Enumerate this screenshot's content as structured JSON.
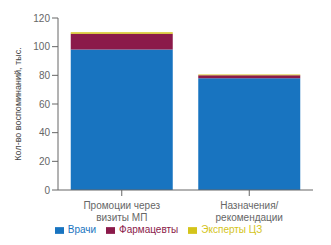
{
  "chart_data": {
    "type": "bar",
    "stacked": true,
    "categories": [
      "Промоции через\nвизиты МП",
      "Назначения/\nрекомендации"
    ],
    "series": [
      {
        "name": "Врачи",
        "color": "#1874C0",
        "values": [
          98,
          78
        ]
      },
      {
        "name": "Фармацевты",
        "color": "#8B1A4A",
        "values": [
          11,
          2
        ]
      },
      {
        "name": "Эксперты ЦЗ",
        "color": "#D4C41A",
        "values": [
          1,
          0.5
        ]
      }
    ],
    "ylabel": "Кол-во воспоминаний, тыс.",
    "ylim": [
      0,
      120
    ],
    "yticks": [
      0,
      20,
      40,
      60,
      80,
      100,
      120
    ],
    "grid": false,
    "legend": "bottom"
  }
}
